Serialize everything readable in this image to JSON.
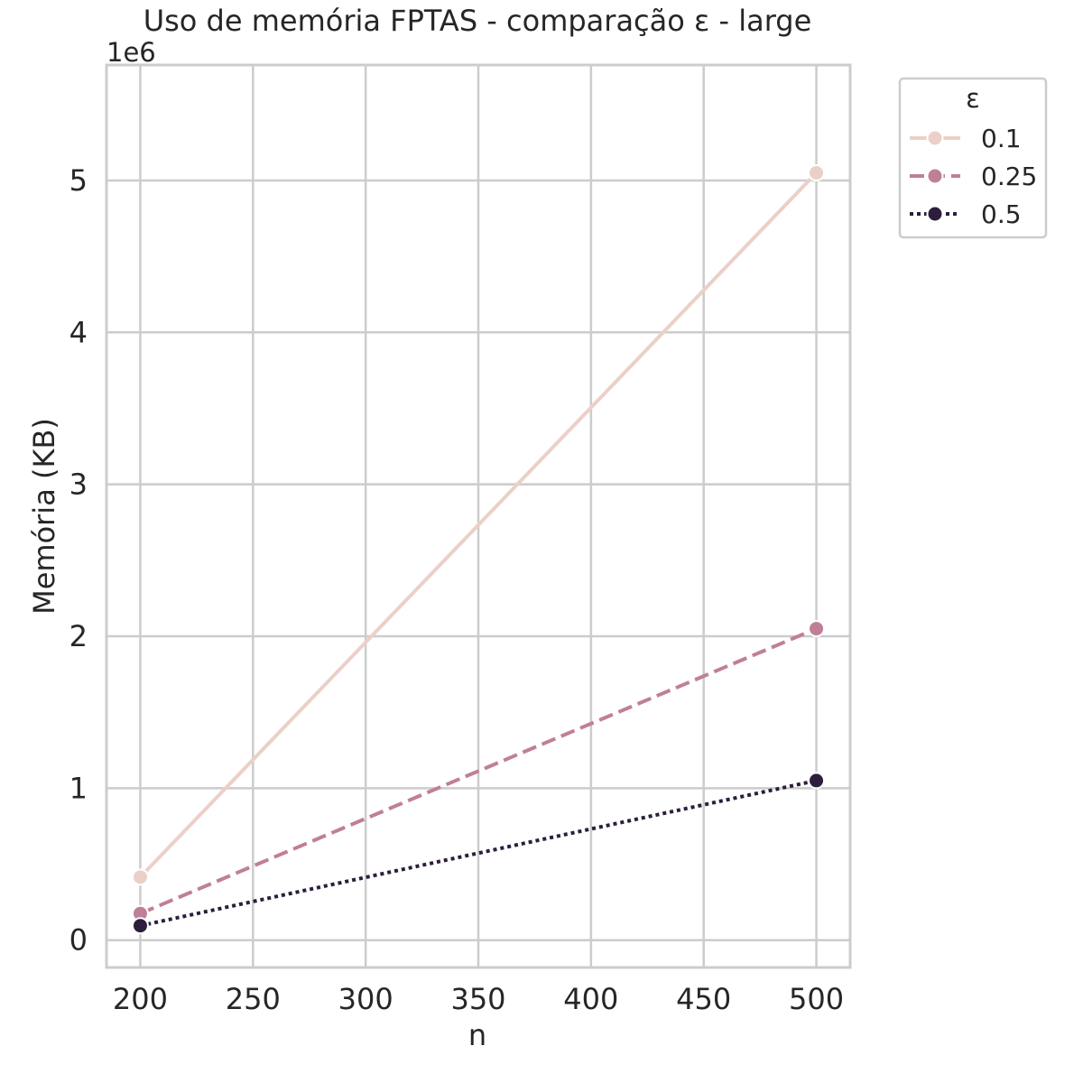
{
  "chart_data": {
    "type": "line",
    "title": "Uso de memória FPTAS - comparação ε - large",
    "xlabel": "n",
    "ylabel": "Memória (KB)",
    "y_offset_label": "1e6",
    "x": [
      200,
      500
    ],
    "xlim": [
      185,
      515
    ],
    "ylim": [
      -180000,
      5760000
    ],
    "x_ticks": [
      200,
      250,
      300,
      350,
      400,
      450,
      500
    ],
    "x_tick_labels": [
      "200",
      "250",
      "300",
      "350",
      "400",
      "450",
      "500"
    ],
    "y_ticks": [
      0,
      1000000,
      2000000,
      3000000,
      4000000,
      5000000
    ],
    "y_tick_labels": [
      "0",
      "1",
      "2",
      "3",
      "4",
      "5"
    ],
    "grid": true,
    "legend": {
      "title": "ε",
      "placement": "outside-top-right"
    },
    "series": [
      {
        "name": "0.1",
        "values": [
          415000,
          5050000
        ],
        "color": "#ebd0c8",
        "line_style": "solid"
      },
      {
        "name": "0.25",
        "values": [
          175000,
          2050000
        ],
        "color": "#c07f98",
        "line_style": "dashed"
      },
      {
        "name": "0.5",
        "values": [
          95000,
          1050000
        ],
        "color": "#2c1e3d",
        "line_style": "dotted"
      }
    ]
  }
}
